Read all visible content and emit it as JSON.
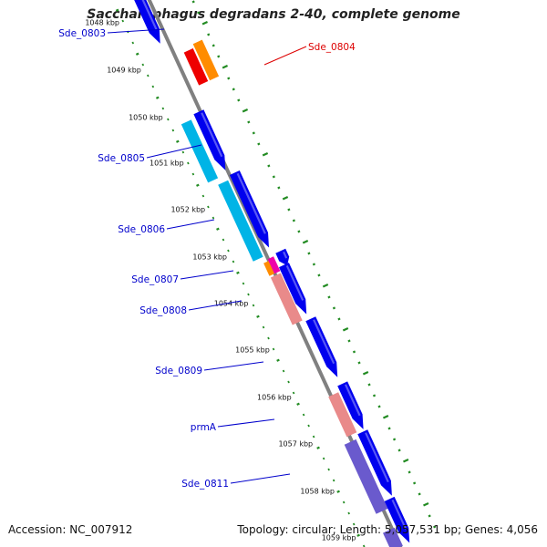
{
  "title": "Saccharophagus degradans 2-40, complete genome",
  "footer": {
    "accession": "Accession: NC_007912",
    "summary": "Topology: circular; Length: 5,057,531 bp; Genes: 4,056"
  },
  "scale": {
    "unit": "kbp",
    "ticks": [
      "1048 kbp",
      "1049 kbp",
      "1050 kbp",
      "1051 kbp",
      "1052 kbp",
      "1053 kbp",
      "1054 kbp",
      "1055 kbp",
      "1056 kbp",
      "1057 kbp",
      "1058 kbp",
      "1059 kbp"
    ]
  },
  "gene_labels": [
    {
      "name": "Sde_0803",
      "color": "#0000cc"
    },
    {
      "name": "Sde_0804",
      "color": "#dd0000"
    },
    {
      "name": "Sde_0805",
      "color": "#0000cc"
    },
    {
      "name": "Sde_0806",
      "color": "#0000cc"
    },
    {
      "name": "Sde_0807",
      "color": "#0000cc"
    },
    {
      "name": "Sde_0808",
      "color": "#0000cc"
    },
    {
      "name": "Sde_0809",
      "color": "#0000cc"
    },
    {
      "name": "prmA",
      "color": "#0000cc"
    },
    {
      "name": "Sde_0811",
      "color": "#0000cc"
    }
  ],
  "colors": {
    "backbone": "#808080",
    "cds_arrow": "#0000ee",
    "tick_mark": "#228b22",
    "gene_blue_label": "#0000cc",
    "gene_red_label": "#dd0000",
    "cyan_feature": "#00b4e6",
    "red_feature": "#ee0000",
    "orange_feature": "#ff8c00",
    "pink_feature": "#e98a8a",
    "magenta_feature": "#ee00aa",
    "purple_feature": "#6a5acd"
  }
}
